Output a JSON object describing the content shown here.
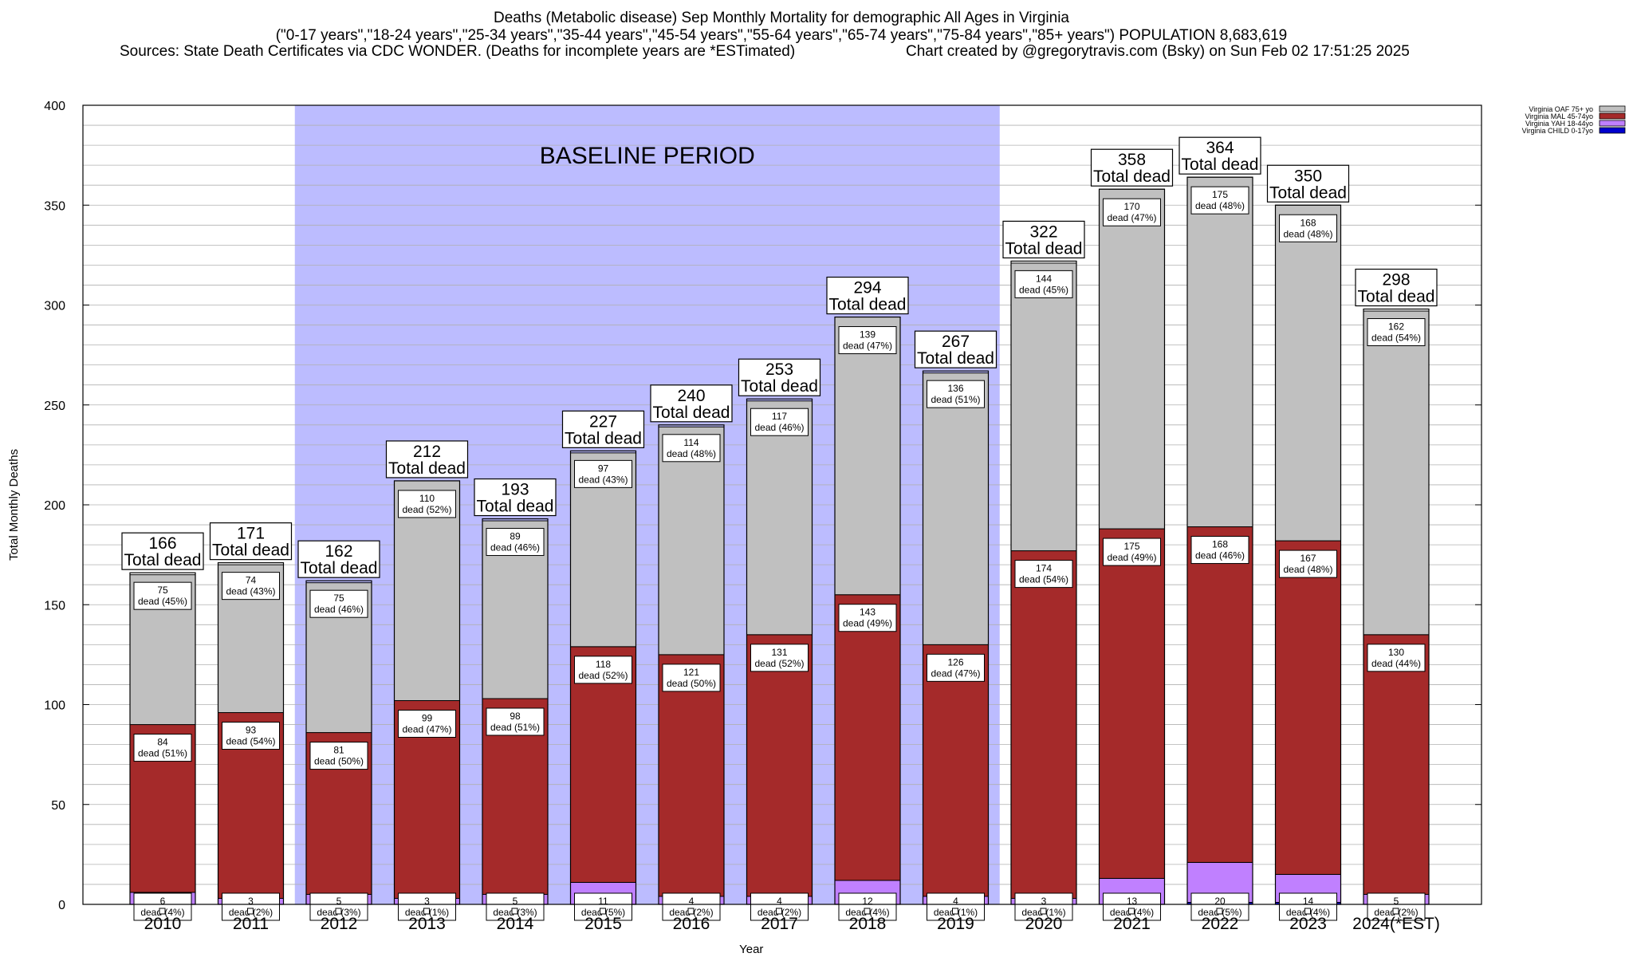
{
  "title": {
    "line1": "Deaths (Metabolic disease) Sep Monthly Mortality for demographic All Ages in Virginia",
    "line2": "(\"0-17 years\",\"18-24 years\",\"25-34 years\",\"35-44 years\",\"45-54 years\",\"55-64 years\",\"65-74 years\",\"75-84 years\",\"85+ years\") POPULATION 8,683,619",
    "sources": "Sources: State Death Certificates via CDC WONDER. (Deaths for incomplete years are *ESTimated)",
    "credit": "Chart created by @gregorytravis.com (Bsky) on Sun Feb 02 17:51:25 2025"
  },
  "colors": {
    "oaf": "#c0c0c0",
    "mal": "#a52a2a",
    "yah": "#c080ff",
    "child": "#0000cd",
    "baseline": "#bcbcff"
  },
  "chart_data": {
    "type": "bar",
    "stacked": true,
    "xlabel": "Year",
    "ylabel": "Total Monthly Deaths",
    "ylim": [
      0,
      400
    ],
    "yticks": [
      0,
      50,
      100,
      150,
      200,
      250,
      300,
      350,
      400
    ],
    "grid": true,
    "legend_position": "top-right",
    "baseline_label": "BASELINE PERIOD",
    "baseline_range": [
      "2012",
      "2019"
    ],
    "total_suffix": "Total dead",
    "categories": [
      "2010",
      "2011",
      "2012",
      "2013",
      "2014",
      "2015",
      "2016",
      "2017",
      "2018",
      "2019",
      "2020",
      "2021",
      "2022",
      "2023",
      "2024(*EST)"
    ],
    "totals": [
      166,
      171,
      162,
      212,
      193,
      227,
      240,
      253,
      294,
      267,
      322,
      358,
      364,
      350,
      298
    ],
    "series": [
      {
        "key": "child",
        "name": "Virginia CHILD 0-17yo",
        "values": [
          0,
          0,
          0,
          0,
          0,
          0,
          0,
          0,
          0,
          0,
          0,
          0,
          1,
          1,
          0
        ]
      },
      {
        "key": "yah",
        "name": "Virginia YAH 18-44yo",
        "values": [
          6,
          3,
          5,
          3,
          5,
          11,
          4,
          4,
          12,
          4,
          3,
          13,
          20,
          14,
          5
        ],
        "labels": [
          "6\ndead (4%)",
          "3\ndead (2%)",
          "5\ndead (3%)",
          "3\ndead (1%)",
          "5\ndead (3%)",
          "11\ndead (5%)",
          "4\ndead (2%)",
          "4\ndead (2%)",
          "12\ndead (4%)",
          "4\ndead (1%)",
          "3\ndead (1%)",
          "13\ndead (4%)",
          "20\ndead (5%)",
          "14\ndead (4%)",
          "5\ndead (2%)"
        ]
      },
      {
        "key": "mal",
        "name": "Virginia MAL 45-74yo",
        "values": [
          84,
          93,
          81,
          99,
          98,
          118,
          121,
          131,
          143,
          126,
          174,
          175,
          168,
          167,
          130
        ],
        "labels": [
          "84\ndead (51%)",
          "93\ndead (54%)",
          "81\ndead (50%)",
          "99\ndead (47%)",
          "98\ndead (51%)",
          "118\ndead (52%)",
          "121\ndead (50%)",
          "131\ndead (52%)",
          "143\ndead (49%)",
          "126\ndead (47%)",
          "174\ndead (54%)",
          "175\ndead (49%)",
          "168\ndead (46%)",
          "167\ndead (48%)",
          "130\ndead (44%)"
        ]
      },
      {
        "key": "oaf",
        "name": "Virginia OAF 75+ yo",
        "values": [
          75,
          74,
          75,
          110,
          89,
          97,
          114,
          117,
          139,
          136,
          144,
          170,
          175,
          168,
          162
        ],
        "labels": [
          "75\ndead (45%)",
          "74\ndead (43%)",
          "75\ndead (46%)",
          "110\ndead (52%)",
          "89\ndead (46%)",
          "97\ndead (43%)",
          "114\ndead (48%)",
          "117\ndead (46%)",
          "139\ndead (47%)",
          "136\ndead (51%)",
          "144\ndead (45%)",
          "170\ndead (47%)",
          "175\ndead (48%)",
          "168\ndead (48%)",
          "162\ndead (54%)"
        ]
      }
    ]
  }
}
